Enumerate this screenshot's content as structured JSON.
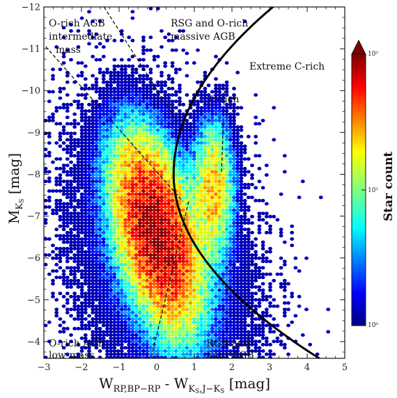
{
  "chart_data": {
    "type": "heatmap",
    "title": "",
    "xlabel_main": "W",
    "xlabel_sub1": "RP,BP−RP",
    "xlabel_mid": " - W",
    "xlabel_sub2": "K",
    "xlabel_sub2b": "S",
    "xlabel_sub2c": ",J−K",
    "xlabel_sub2d": "S",
    "xlabel_tail": " [mag]",
    "ylabel_main": "M",
    "ylabel_sub": "K",
    "ylabel_subsub": "S",
    "ylabel_tail": " [mag]",
    "xlim": [
      -3,
      5
    ],
    "ylim": [
      -3.6,
      -12
    ],
    "xticks": [
      "−3",
      "−2",
      "−1",
      "0",
      "1",
      "2",
      "3",
      "4",
      "5"
    ],
    "yticks": [
      "−4",
      "−5",
      "−6",
      "−7",
      "−8",
      "−9",
      "−10",
      "−11",
      "−12"
    ],
    "colorbar": {
      "label": "Star count",
      "scale": "log",
      "range": [
        1,
        100
      ],
      "tick_labels": [
        "10⁰",
        "10¹",
        "10²"
      ],
      "colormap": "jet"
    },
    "regions": [
      {
        "name": "O-rich AGB intermediate mass",
        "lines": [
          "O-rich AGB",
          "intermediate",
          "mass"
        ]
      },
      {
        "name": "RSG and O-rich massive AGB",
        "lines": [
          "RSG and O-rich",
          "massive AGB"
        ]
      },
      {
        "name": "Extreme C-rich",
        "lines": [
          "Extreme C-rich"
        ]
      },
      {
        "name": "C-rich",
        "lines": [
          "C-rich"
        ]
      },
      {
        "name": "O-rich AGB low-mass",
        "lines": [
          "O-rich AGB",
          "low-mass"
        ]
      },
      {
        "name": "RGB and faint AGB",
        "lines": [
          "RGB and",
          "faint AGB"
        ]
      }
    ],
    "density_components": [
      {
        "x": 0.0,
        "y": -6.6,
        "sx": 0.55,
        "sy": 1.1,
        "rho": 0.45,
        "peak": 100
      },
      {
        "x": 1.5,
        "y": -7.6,
        "sx": 0.28,
        "sy": 0.85,
        "rho": 0.0,
        "peak": 25
      },
      {
        "x": 0.1,
        "y": -6.0,
        "sx": 1.3,
        "sy": 1.9,
        "rho": 0.3,
        "peak": 3
      }
    ],
    "boundaries": [
      {
        "type": "dashed",
        "points": [
          [
            -2.95,
            -11.05
          ],
          [
            0.7,
            -7.35
          ]
        ]
      },
      {
        "type": "dashed",
        "points": [
          [
            -1.4,
            -12.0
          ],
          [
            0.55,
            -9.25
          ]
        ]
      },
      {
        "type": "dashed",
        "points": [
          [
            0.85,
            -7.35
          ],
          [
            -0.15,
            -3.6
          ]
        ]
      },
      {
        "type": "dashed",
        "points": [
          [
            1.8,
            -10.0
          ],
          [
            1.72,
            -8.0
          ]
        ]
      },
      {
        "type": "solid-curve",
        "description": "hyperbola-like curve from (3.1, -12) through (0.45, -8) to (3.45, -3.6)"
      }
    ]
  }
}
